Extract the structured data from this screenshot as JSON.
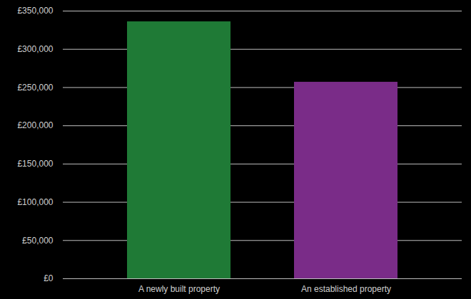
{
  "chart_data": {
    "type": "bar",
    "categories": [
      "A newly built property",
      "An established property"
    ],
    "values": [
      336000,
      257000
    ],
    "colors": [
      "#1f7a36",
      "#7a2c88"
    ],
    "ylim": [
      0,
      350000
    ],
    "yticks": [
      {
        "value": 0,
        "label": "£0"
      },
      {
        "value": 50000,
        "label": "£50,000"
      },
      {
        "value": 100000,
        "label": "£100,000"
      },
      {
        "value": 150000,
        "label": "£150,000"
      },
      {
        "value": 200000,
        "label": "£200,000"
      },
      {
        "value": 250000,
        "label": "£250,000"
      },
      {
        "value": 300000,
        "label": "£300,000"
      },
      {
        "value": 350000,
        "label": "£350,000"
      }
    ],
    "grid": true
  }
}
